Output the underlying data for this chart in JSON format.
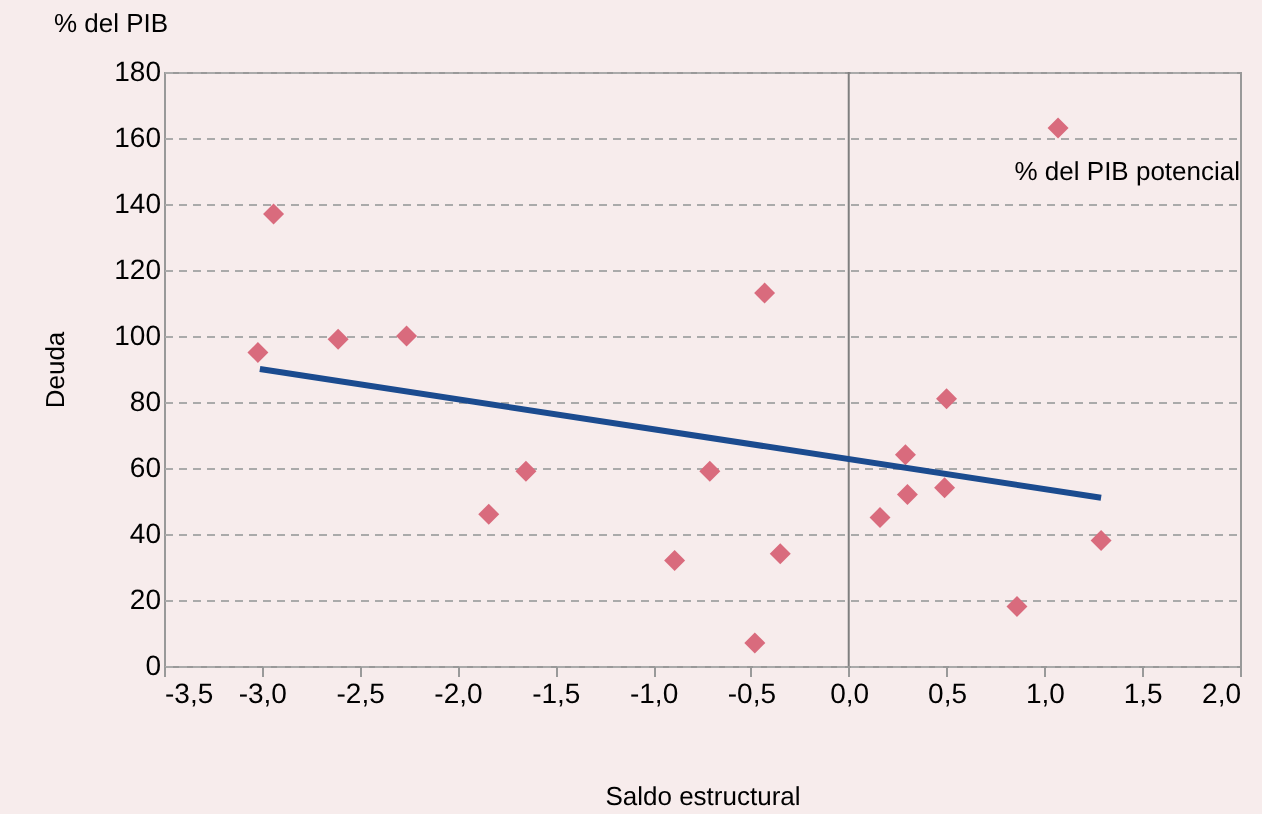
{
  "chart_data": {
    "type": "scatter",
    "xlabel": "Saldo estructural",
    "ylabel": "Deuda",
    "annotations": [
      "% del PIB",
      "% del PIB potencial"
    ],
    "series": [
      {
        "type": "scatter",
        "color": "#d96b7d",
        "marker": "diamond",
        "x": [
          -3.02,
          -2.94,
          -2.61,
          -2.26,
          -1.84,
          -1.65,
          -0.89,
          -0.71,
          -0.43,
          -0.35,
          -0.48,
          0.16,
          0.29,
          0.3,
          0.5,
          0.49,
          1.07,
          0.86,
          1.29
        ],
        "values": [
          95,
          137,
          99,
          100,
          46,
          59,
          32,
          59,
          113,
          34,
          7,
          45,
          64,
          52,
          81,
          54,
          163,
          18,
          38
        ]
      },
      {
        "type": "line",
        "color": "#1b4b8f",
        "line_style": "solid",
        "x": [
          -3.01,
          1.29
        ],
        "values": [
          90,
          51
        ]
      }
    ],
    "xlim": [
      -3.5,
      2.0
    ],
    "ylim": [
      0,
      180
    ],
    "xticks": [
      {
        "value": -3.5,
        "label": "-3,5"
      },
      {
        "value": -3.0,
        "label": "-3,0"
      },
      {
        "value": -2.5,
        "label": "-2,5"
      },
      {
        "value": -2.0,
        "label": "-2,0"
      },
      {
        "value": -1.5,
        "label": "-1,5"
      },
      {
        "value": -1.0,
        "label": "-1,0"
      },
      {
        "value": -0.5,
        "label": "-0,5"
      },
      {
        "value": 0,
        "label": "0,0"
      },
      {
        "value": 0.5,
        "label": "0,5"
      },
      {
        "value": 1.0,
        "label": "1,0"
      },
      {
        "value": 1.5,
        "label": "1,5"
      },
      {
        "value": 2.0,
        "label": "2,0"
      }
    ],
    "yticks": [
      0,
      20,
      40,
      60,
      80,
      100,
      120,
      140,
      160,
      180
    ],
    "ref_lines": [
      {
        "axis": "x",
        "value": 0,
        "color": "#7f7f7f"
      }
    ],
    "grid": "y"
  }
}
